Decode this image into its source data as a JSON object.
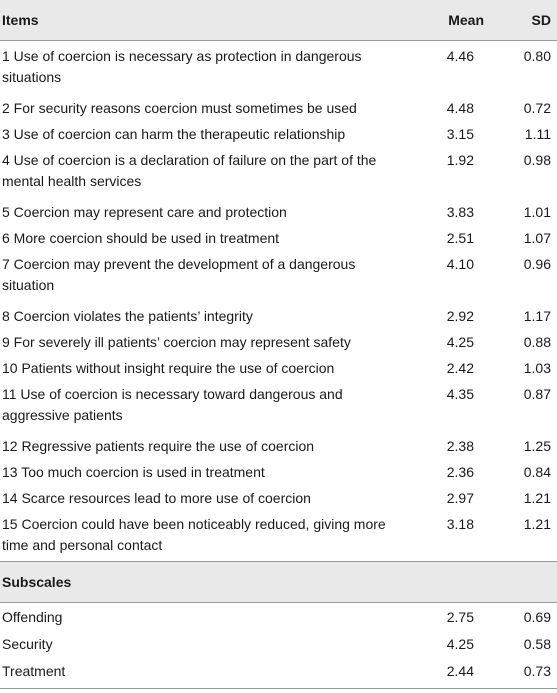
{
  "header": {
    "items": "Items",
    "mean": "Mean",
    "sd": "SD"
  },
  "items": [
    {
      "text": "1 Use of coercion is necessary as protection in dangerous situations",
      "mean": "4.46",
      "sd": "0.80"
    },
    {
      "text": "2 For security reasons coercion must sometimes be used",
      "mean": "4.48",
      "sd": "0.72"
    },
    {
      "text": "3 Use of coercion can harm the therapeutic relationship",
      "mean": "3.15",
      "sd": "1.11"
    },
    {
      "text": "4 Use of coercion is a declaration of failure on the part of the mental health services",
      "mean": "1.92",
      "sd": "0.98"
    },
    {
      "text": "5 Coercion may represent care and protection",
      "mean": "3.83",
      "sd": "1.01"
    },
    {
      "text": "6 More coercion should be used in treatment",
      "mean": "2.51",
      "sd": "1.07"
    },
    {
      "text": "7 Coercion may prevent the development of a dangerous situation",
      "mean": "4.10",
      "sd": "0.96"
    },
    {
      "text": "8 Coercion violates the patients’ integrity",
      "mean": "2.92",
      "sd": "1.17"
    },
    {
      "text": "9 For severely ill patients’ coercion may represent safety",
      "mean": "4.25",
      "sd": "0.88"
    },
    {
      "text": "10 Patients without insight require the use of coercion",
      "mean": "2.42",
      "sd": "1.03"
    },
    {
      "text": "11 Use of coercion is necessary toward dangerous and aggressive patients",
      "mean": "4.35",
      "sd": "0.87"
    },
    {
      "text": "12 Regressive patients require the use of coercion",
      "mean": "2.38",
      "sd": "1.25"
    },
    {
      "text": "13 Too much coercion is used in treatment",
      "mean": "2.36",
      "sd": "0.84"
    },
    {
      "text": "14 Scarce resources lead to more use of coercion",
      "mean": "2.97",
      "sd": "1.21"
    },
    {
      "text": "15 Coercion could have been noticeably reduced, giving more time and personal contact",
      "mean": "3.18",
      "sd": "1.21"
    }
  ],
  "subscales_title": "Subscales",
  "subscales": [
    {
      "text": "Offending",
      "mean": "2.75",
      "sd": "0.69"
    },
    {
      "text": "Security",
      "mean": "4.25",
      "sd": "0.58"
    },
    {
      "text": "Treatment",
      "mean": "2.44",
      "sd": "0.73"
    }
  ]
}
